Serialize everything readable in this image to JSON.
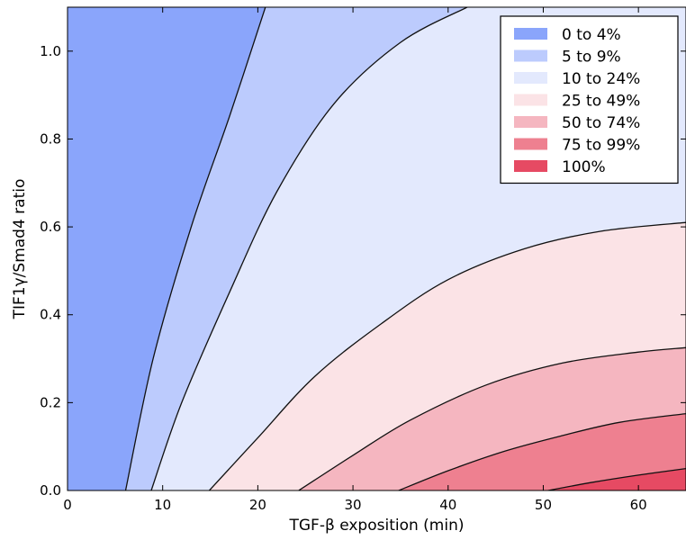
{
  "chart_data": {
    "type": "contour",
    "xlabel": "TGF-β exposition (min)",
    "ylabel": "TIF1γ/Smad4 ratio",
    "xlim": [
      0,
      65
    ],
    "ylim": [
      0,
      1.1
    ],
    "xticks": [
      0,
      10,
      20,
      30,
      40,
      50,
      60
    ],
    "xtick_labels": [
      "0",
      "10",
      "20",
      "30",
      "40",
      "50",
      "60"
    ],
    "yticks": [
      0.0,
      0.2,
      0.4,
      0.6,
      0.8,
      1.0
    ],
    "ytick_labels": [
      "0.0",
      "0.2",
      "0.4",
      "0.6",
      "0.8",
      "1.0"
    ],
    "grid": false,
    "legend_position": "top-right",
    "legend": [
      {
        "label": "0 to 4%",
        "color": "#8aa5fb"
      },
      {
        "label": "5 to 9%",
        "color": "#bccbfd"
      },
      {
        "label": "10 to 24%",
        "color": "#e3e9fd"
      },
      {
        "label": "25 to 49%",
        "color": "#fbe3e6"
      },
      {
        "label": "50 to 74%",
        "color": "#f5b6c0"
      },
      {
        "label": "75 to 99%",
        "color": "#ee8090"
      },
      {
        "label": "100%",
        "color": "#e64a63"
      }
    ],
    "boundaries": [
      {
        "between": "0 to 4% / 5 to 9%",
        "points": [
          [
            6.1,
            0.0
          ],
          [
            9,
            0.3
          ],
          [
            13,
            0.6
          ],
          [
            17,
            0.85
          ],
          [
            20.8,
            1.1
          ]
        ]
      },
      {
        "between": "5 to 9% / 10 to 24%",
        "points": [
          [
            8.8,
            0.0
          ],
          [
            12,
            0.2
          ],
          [
            17,
            0.45
          ],
          [
            22,
            0.68
          ],
          [
            28,
            0.88
          ],
          [
            35,
            1.02
          ],
          [
            42,
            1.1
          ]
        ]
      },
      {
        "between": "10 to 24% / 25 to 49%",
        "points": [
          [
            14.9,
            0.0
          ],
          [
            20,
            0.12
          ],
          [
            26,
            0.26
          ],
          [
            33,
            0.38
          ],
          [
            40,
            0.48
          ],
          [
            48,
            0.55
          ],
          [
            56,
            0.59
          ],
          [
            65,
            0.61
          ]
        ]
      },
      {
        "between": "25 to 49% / 50 to 74%",
        "points": [
          [
            24.3,
            0.0
          ],
          [
            30,
            0.08
          ],
          [
            36,
            0.16
          ],
          [
            44,
            0.24
          ],
          [
            52,
            0.29
          ],
          [
            60,
            0.315
          ],
          [
            65,
            0.325
          ]
        ]
      },
      {
        "between": "50 to 74% / 75 to 99%",
        "points": [
          [
            34.8,
            0.0
          ],
          [
            40,
            0.045
          ],
          [
            46,
            0.09
          ],
          [
            52,
            0.125
          ],
          [
            58,
            0.155
          ],
          [
            65,
            0.175
          ]
        ]
      },
      {
        "between": "75 to 99% / 100%",
        "points": [
          [
            50.5,
            0.0
          ],
          [
            55,
            0.018
          ],
          [
            60,
            0.035
          ],
          [
            65,
            0.05
          ]
        ]
      }
    ]
  }
}
